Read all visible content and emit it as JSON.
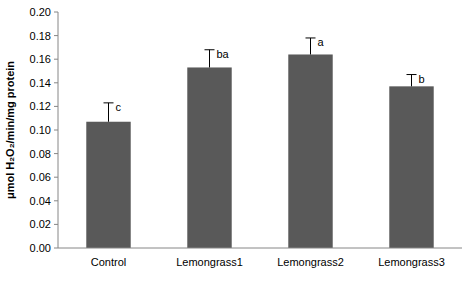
{
  "chart_data": {
    "type": "bar",
    "y_label": "μmol H₂O₂/min/mg protein",
    "categories": [
      "Control",
      "Lemongrass1",
      "Lemongrass2",
      "Lemongrass3"
    ],
    "values": [
      0.107,
      0.153,
      0.164,
      0.137
    ],
    "errors": [
      0.016,
      0.015,
      0.014,
      0.01
    ],
    "annotations": [
      "c",
      "ba",
      "a",
      "b"
    ],
    "color": "#595959",
    "ylim": [
      0,
      0.2
    ],
    "yticks": [
      {
        "value": 0,
        "label": "0.00"
      },
      {
        "value": 0.02,
        "label": "0.02"
      },
      {
        "value": 0.04,
        "label": "0.04"
      },
      {
        "value": 0.06,
        "label": "0.06"
      },
      {
        "value": 0.08,
        "label": "0.08"
      },
      {
        "value": 0.1,
        "label": "0.10"
      },
      {
        "value": 0.12,
        "label": "0.12"
      },
      {
        "value": 0.14,
        "label": "0.14"
      },
      {
        "value": 0.16,
        "label": "0.16"
      },
      {
        "value": 0.18,
        "label": "0.18"
      },
      {
        "value": 0.2,
        "label": "0.20"
      }
    ],
    "grid": false
  }
}
